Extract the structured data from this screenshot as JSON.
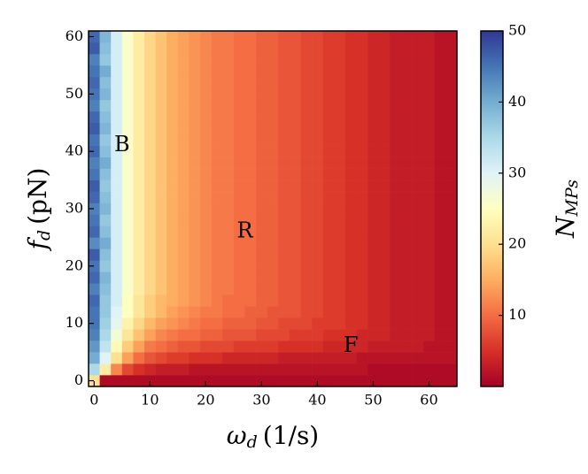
{
  "chart_data": {
    "type": "heatmap",
    "x_label": {
      "symbol": "ω",
      "subscript": "d",
      "unit": "(1/s)"
    },
    "y_label": {
      "symbol": "f",
      "subscript": "d",
      "unit": "(pN)"
    },
    "colorbar_label": {
      "symbol": "N",
      "subscript": "MPs"
    },
    "annotations": [
      {
        "text": "B",
        "x": 5,
        "y": 41
      },
      {
        "text": "R",
        "x": 27,
        "y": 26
      },
      {
        "text": "F",
        "x": 46,
        "y": 6
      }
    ],
    "xlim": [
      -1,
      65
    ],
    "ylim": [
      -1,
      61
    ],
    "xticks": [
      0,
      10,
      20,
      30,
      40,
      50,
      60
    ],
    "yticks": [
      0,
      10,
      20,
      30,
      40,
      50,
      60
    ],
    "clim": [
      0,
      50
    ],
    "cticks": [
      10,
      20,
      30,
      40,
      50
    ],
    "colormap": [
      "#a50026",
      "#d73027",
      "#f46d43",
      "#fdae61",
      "#fee090",
      "#ffffbf",
      "#e0f3f8",
      "#abd9e9",
      "#74add1",
      "#4575b4",
      "#313695"
    ],
    "x": [
      0,
      2,
      4,
      6,
      8,
      10,
      12,
      14,
      16,
      18,
      20,
      22,
      24,
      26,
      28,
      30,
      32,
      34,
      36,
      38,
      40,
      42,
      44,
      46,
      48,
      50,
      52,
      54,
      56,
      58,
      60,
      62,
      64
    ],
    "y": [
      0,
      2,
      4,
      6,
      8,
      10,
      12,
      14,
      16,
      18,
      20,
      22,
      24,
      26,
      28,
      30,
      32,
      34,
      36,
      38,
      40,
      42,
      44,
      46,
      48,
      50,
      52,
      54,
      56,
      58,
      60
    ],
    "z": [
      [
        20,
        1,
        1,
        1,
        1,
        1,
        1,
        1,
        1,
        1,
        1,
        1,
        1,
        1,
        1,
        1,
        1,
        1,
        1,
        1,
        1,
        1,
        1,
        1,
        1,
        1,
        1,
        1,
        1,
        1,
        1,
        1,
        1
      ],
      [
        35,
        22,
        12,
        7,
        5,
        4,
        3,
        3,
        3,
        2,
        2,
        2,
        2,
        2,
        2,
        2,
        2,
        2,
        2,
        2,
        2,
        2,
        2,
        2,
        2,
        1,
        1,
        1,
        1,
        1,
        1,
        1,
        1
      ],
      [
        40,
        30,
        20,
        14,
        10,
        8,
        7,
        6,
        6,
        5,
        5,
        5,
        4,
        4,
        4,
        4,
        4,
        3,
        3,
        3,
        3,
        3,
        3,
        3,
        2,
        2,
        2,
        2,
        2,
        2,
        2,
        2,
        2
      ],
      [
        42,
        33,
        24,
        18,
        14,
        11,
        10,
        9,
        8,
        8,
        7,
        7,
        7,
        6,
        6,
        6,
        6,
        5,
        5,
        5,
        5,
        4,
        4,
        4,
        4,
        3,
        3,
        3,
        3,
        3,
        2,
        2,
        2
      ],
      [
        44,
        35,
        27,
        21,
        17,
        14,
        12,
        11,
        10,
        10,
        9,
        9,
        8,
        8,
        8,
        7,
        7,
        7,
        6,
        6,
        6,
        5,
        5,
        5,
        4,
        4,
        4,
        3,
        3,
        3,
        3,
        2,
        2
      ],
      [
        45,
        36,
        29,
        23,
        19,
        16,
        14,
        13,
        12,
        11,
        10,
        10,
        9,
        9,
        9,
        8,
        8,
        7,
        7,
        7,
        6,
        6,
        6,
        5,
        5,
        4,
        4,
        3,
        3,
        3,
        3,
        2,
        2
      ],
      [
        45,
        37,
        30,
        25,
        21,
        18,
        16,
        14,
        13,
        12,
        11,
        11,
        10,
        10,
        9,
        9,
        8,
        8,
        8,
        7,
        7,
        6,
        6,
        5,
        5,
        4,
        4,
        3,
        3,
        3,
        3,
        2,
        2
      ],
      [
        46,
        37,
        31,
        25,
        21,
        18,
        16,
        15,
        14,
        13,
        12,
        11,
        10,
        10,
        10,
        9,
        9,
        8,
        8,
        7,
        7,
        6,
        6,
        5,
        5,
        4,
        4,
        3,
        3,
        3,
        3,
        2,
        2
      ],
      [
        44,
        38,
        31,
        26,
        22,
        19,
        17,
        15,
        14,
        13,
        12,
        11,
        11,
        10,
        10,
        9,
        9,
        8,
        8,
        7,
        7,
        6,
        6,
        5,
        5,
        4,
        4,
        3,
        3,
        3,
        3,
        2,
        2
      ],
      [
        46,
        39,
        31,
        26,
        22,
        19,
        17,
        15,
        14,
        13,
        12,
        11,
        11,
        10,
        10,
        9,
        9,
        8,
        8,
        7,
        7,
        6,
        6,
        5,
        5,
        4,
        4,
        3,
        3,
        3,
        3,
        2,
        2
      ],
      [
        45,
        37,
        31,
        26,
        22,
        19,
        17,
        15,
        14,
        13,
        12,
        11,
        11,
        10,
        10,
        9,
        9,
        8,
        8,
        7,
        7,
        6,
        6,
        5,
        5,
        4,
        4,
        3,
        3,
        3,
        3,
        2,
        2
      ],
      [
        47,
        38,
        31,
        26,
        22,
        19,
        17,
        15,
        14,
        13,
        12,
        11,
        11,
        10,
        10,
        9,
        9,
        8,
        8,
        7,
        7,
        6,
        6,
        5,
        5,
        4,
        4,
        3,
        3,
        3,
        3,
        2,
        2
      ],
      [
        43,
        40,
        31,
        26,
        22,
        19,
        17,
        15,
        14,
        13,
        12,
        11,
        11,
        10,
        10,
        9,
        9,
        8,
        8,
        7,
        7,
        6,
        6,
        5,
        5,
        4,
        4,
        3,
        3,
        3,
        3,
        2,
        2
      ],
      [
        46,
        38,
        31,
        26,
        22,
        19,
        17,
        15,
        14,
        13,
        12,
        11,
        11,
        10,
        10,
        9,
        9,
        8,
        8,
        7,
        7,
        6,
        6,
        5,
        5,
        4,
        4,
        3,
        3,
        3,
        3,
        2,
        2
      ],
      [
        45,
        37,
        31,
        26,
        22,
        19,
        17,
        15,
        14,
        13,
        12,
        11,
        11,
        10,
        10,
        9,
        9,
        8,
        8,
        7,
        7,
        6,
        6,
        5,
        5,
        4,
        4,
        3,
        3,
        3,
        3,
        2,
        2
      ],
      [
        44,
        39,
        31,
        26,
        22,
        19,
        17,
        15,
        14,
        13,
        12,
        11,
        11,
        10,
        10,
        9,
        9,
        8,
        8,
        7,
        7,
        6,
        6,
        5,
        5,
        4,
        4,
        3,
        3,
        3,
        3,
        2,
        2
      ],
      [
        46,
        38,
        31,
        26,
        22,
        19,
        17,
        15,
        14,
        13,
        12,
        11,
        11,
        10,
        10,
        9,
        9,
        8,
        8,
        7,
        7,
        6,
        6,
        5,
        5,
        4,
        4,
        3,
        3,
        3,
        3,
        2,
        2
      ],
      [
        47,
        37,
        31,
        26,
        22,
        19,
        17,
        15,
        14,
        13,
        12,
        11,
        11,
        10,
        10,
        9,
        9,
        8,
        8,
        7,
        7,
        6,
        6,
        5,
        5,
        4,
        4,
        3,
        3,
        3,
        3,
        2,
        2
      ],
      [
        45,
        38,
        31,
        26,
        22,
        19,
        17,
        15,
        14,
        13,
        12,
        11,
        11,
        10,
        10,
        9,
        9,
        8,
        8,
        7,
        7,
        6,
        6,
        5,
        5,
        4,
        4,
        3,
        3,
        3,
        3,
        2,
        2
      ],
      [
        44,
        40,
        31,
        26,
        22,
        19,
        17,
        15,
        14,
        13,
        12,
        11,
        11,
        10,
        10,
        9,
        9,
        8,
        8,
        7,
        7,
        6,
        6,
        5,
        5,
        4,
        4,
        3,
        3,
        3,
        3,
        2,
        2
      ],
      [
        46,
        38,
        31,
        26,
        22,
        19,
        17,
        15,
        14,
        13,
        12,
        11,
        11,
        10,
        10,
        9,
        9,
        8,
        8,
        7,
        7,
        6,
        6,
        5,
        5,
        4,
        4,
        3,
        3,
        3,
        3,
        2,
        2
      ],
      [
        45,
        37,
        31,
        26,
        22,
        19,
        17,
        15,
        14,
        13,
        12,
        11,
        11,
        10,
        10,
        9,
        9,
        8,
        8,
        7,
        7,
        6,
        6,
        5,
        5,
        4,
        4,
        3,
        3,
        3,
        3,
        2,
        2
      ],
      [
        47,
        39,
        31,
        26,
        22,
        19,
        17,
        15,
        14,
        13,
        12,
        11,
        11,
        10,
        10,
        9,
        9,
        8,
        8,
        7,
        7,
        6,
        6,
        5,
        5,
        4,
        4,
        3,
        3,
        3,
        3,
        2,
        2
      ],
      [
        46,
        38,
        31,
        26,
        22,
        19,
        17,
        15,
        14,
        13,
        12,
        11,
        11,
        10,
        10,
        9,
        9,
        8,
        8,
        7,
        7,
        6,
        6,
        5,
        5,
        4,
        4,
        3,
        3,
        3,
        3,
        2,
        2
      ],
      [
        44,
        37,
        31,
        26,
        22,
        19,
        17,
        15,
        14,
        13,
        12,
        11,
        11,
        10,
        10,
        9,
        9,
        8,
        8,
        7,
        7,
        6,
        6,
        5,
        5,
        4,
        4,
        3,
        3,
        3,
        3,
        2,
        2
      ],
      [
        45,
        39,
        31,
        26,
        22,
        19,
        17,
        15,
        14,
        13,
        12,
        11,
        11,
        10,
        10,
        9,
        9,
        8,
        8,
        7,
        7,
        6,
        6,
        5,
        5,
        4,
        4,
        3,
        3,
        3,
        3,
        2,
        2
      ],
      [
        46,
        38,
        31,
        26,
        22,
        19,
        17,
        15,
        14,
        13,
        12,
        11,
        11,
        10,
        10,
        9,
        9,
        8,
        8,
        7,
        7,
        6,
        6,
        5,
        5,
        4,
        4,
        3,
        3,
        3,
        3,
        2,
        2
      ],
      [
        45,
        40,
        31,
        26,
        22,
        19,
        17,
        15,
        14,
        13,
        12,
        11,
        11,
        10,
        10,
        9,
        9,
        8,
        8,
        7,
        7,
        6,
        6,
        5,
        5,
        4,
        4,
        3,
        3,
        3,
        3,
        2,
        2
      ],
      [
        44,
        37,
        31,
        26,
        22,
        19,
        17,
        15,
        14,
        13,
        12,
        11,
        11,
        10,
        10,
        9,
        9,
        8,
        8,
        7,
        7,
        6,
        6,
        5,
        5,
        4,
        4,
        3,
        3,
        3,
        3,
        2,
        2
      ],
      [
        47,
        38,
        31,
        26,
        22,
        19,
        17,
        15,
        14,
        13,
        12,
        11,
        11,
        10,
        10,
        9,
        9,
        8,
        8,
        7,
        7,
        6,
        6,
        5,
        5,
        4,
        4,
        3,
        3,
        3,
        3,
        2,
        2
      ],
      [
        46,
        39,
        31,
        26,
        22,
        19,
        17,
        15,
        14,
        13,
        12,
        11,
        11,
        10,
        10,
        9,
        9,
        8,
        8,
        7,
        7,
        6,
        6,
        5,
        5,
        4,
        4,
        3,
        3,
        3,
        3,
        2,
        2
      ]
    ]
  }
}
